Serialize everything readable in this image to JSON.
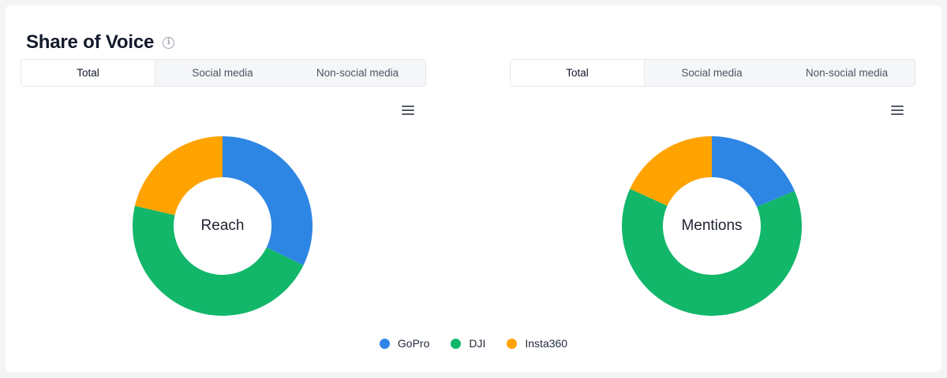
{
  "header": {
    "title": "Share of Voice",
    "info_icon": "info-circle-icon"
  },
  "panels": [
    {
      "tabs": [
        {
          "label": "Total",
          "active": true
        },
        {
          "label": "Social media",
          "active": false
        },
        {
          "label": "Non-social media",
          "active": false
        }
      ],
      "menu_icon": "hamburger-menu-icon",
      "center_label": "Reach"
    },
    {
      "tabs": [
        {
          "label": "Total",
          "active": true
        },
        {
          "label": "Social media",
          "active": false
        },
        {
          "label": "Non-social media",
          "active": false
        }
      ],
      "menu_icon": "hamburger-menu-icon",
      "center_label": "Mentions"
    }
  ],
  "legend": [
    {
      "label": "GoPro",
      "color": "#2e86e4"
    },
    {
      "label": "DJI",
      "color": "#12b76a"
    },
    {
      "label": "Insta360",
      "color": "#ffa300"
    }
  ],
  "chart_data": [
    {
      "type": "pie",
      "subtype": "donut",
      "title": "Reach",
      "categories": [
        "GoPro",
        "DJI",
        "Insta360"
      ],
      "values": [
        32.2,
        46.4,
        21.4
      ],
      "unit": "%",
      "colors": [
        "#2e86e4",
        "#12b76a",
        "#ffa300"
      ],
      "start_angle": 0,
      "direction": "clockwise",
      "legend_position": "bottom"
    },
    {
      "type": "pie",
      "subtype": "donut",
      "title": "Mentions",
      "categories": [
        "GoPro",
        "DJI",
        "Insta360"
      ],
      "values": [
        18.6,
        63.2,
        18.2
      ],
      "unit": "%",
      "colors": [
        "#2e86e4",
        "#12b76a",
        "#ffa300"
      ],
      "start_angle": 0,
      "direction": "clockwise",
      "legend_position": "bottom"
    }
  ]
}
